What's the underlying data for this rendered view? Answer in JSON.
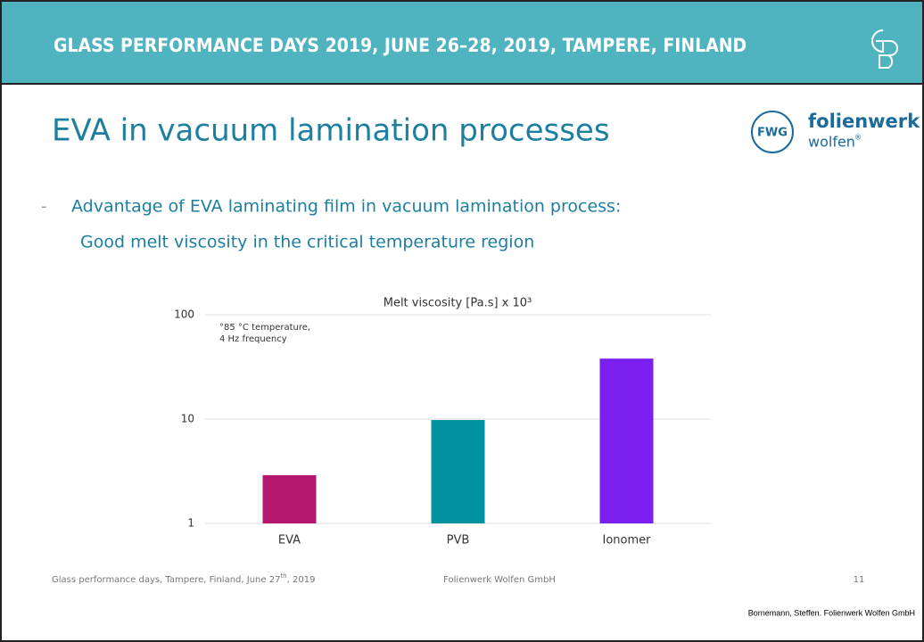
{
  "header": {
    "title": "GLASS PERFORMANCE DAYS 2019, JUNE 26–28, 2019, TAMPERE, FINLAND"
  },
  "slide_title": "EVA in vacuum lamination processes",
  "logo": {
    "badge": "FWG",
    "name": "folienwerk",
    "sub": "wolfen",
    "mark": "®"
  },
  "bullet": {
    "dash": "-",
    "line1": "Advantage of EVA laminating film in vacuum lamination process:",
    "line2": "Good melt viscosity in the critical temperature region"
  },
  "chart_data": {
    "type": "bar",
    "title": "Melt viscosity [Pa.s] x 10³",
    "annotation": [
      "°85 °C temperature,",
      "4 Hz frequency"
    ],
    "categories": [
      "EVA",
      "PVB",
      "Ionomer"
    ],
    "values": [
      2.9,
      9.8,
      38
    ],
    "colors": [
      "#b5176e",
      "#00939f",
      "#7a1ff0"
    ],
    "ylim": [
      1,
      100
    ],
    "yticks": [
      1,
      10,
      100
    ],
    "log": true,
    "grid": true
  },
  "footer": {
    "left": {
      "before": "Glass performance days, Tampere, Finland, June 27",
      "sup": "th",
      "after": ", 2019"
    },
    "center": "Folienwerk Wolfen GmbH",
    "page": "11"
  },
  "citation": "Bornemann, Steffen. Folienwerk Wolfen GmbH"
}
